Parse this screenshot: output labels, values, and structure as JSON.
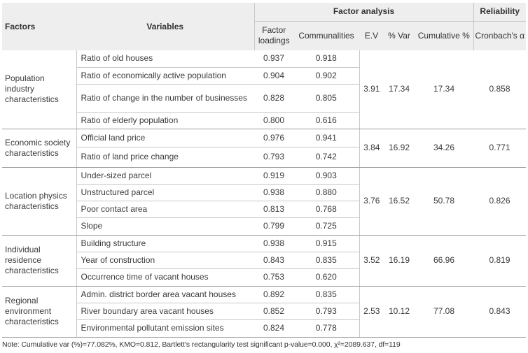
{
  "header": {
    "factor_analysis": "Factor analysis",
    "reliability": "Reliability",
    "factors": "Factors",
    "variables": "Variables",
    "factor_loadings": "Factor loadings",
    "communalities": "Communalities",
    "ev": "E.V",
    "pct_var": "% Var",
    "cumulative": "Cumulative %",
    "cronbach": "Cronbach's α"
  },
  "groups": [
    {
      "factor": "Population industry characteristics",
      "ev": "3.91",
      "pct_var": "17.34",
      "cumulative": "17.34",
      "alpha": "0.858",
      "rows": [
        {
          "variable": "Ratio of old houses",
          "loading": "0.937",
          "communality": "0.918"
        },
        {
          "variable": "Ratio of economically active population",
          "loading": "0.904",
          "communality": "0.902"
        },
        {
          "variable": "Ratio of change in the number of businesses",
          "loading": "0.828",
          "communality": "0.805"
        },
        {
          "variable": "Ratio of elderly population",
          "loading": "0.800",
          "communality": "0.616"
        }
      ]
    },
    {
      "factor": "Economic society characteristics",
      "ev": "3.84",
      "pct_var": "16.92",
      "cumulative": "34.26",
      "alpha": "0.771",
      "rows": [
        {
          "variable": "Official land price",
          "loading": "0.976",
          "communality": "0.941"
        },
        {
          "variable": "Ratio of land price change",
          "loading": "0.793",
          "communality": "0.742"
        }
      ]
    },
    {
      "factor": "Location physics characteristics",
      "ev": "3.76",
      "pct_var": "16.52",
      "cumulative": "50.78",
      "alpha": "0.826",
      "rows": [
        {
          "variable": "Under-sized parcel",
          "loading": "0.919",
          "communality": "0.903"
        },
        {
          "variable": "Unstructured parcel",
          "loading": "0.938",
          "communality": "0.880"
        },
        {
          "variable": "Poor contact area",
          "loading": "0.813",
          "communality": "0.768"
        },
        {
          "variable": "Slope",
          "loading": "0.799",
          "communality": "0.725"
        }
      ]
    },
    {
      "factor": "Individual residence characteristics",
      "ev": "3.52",
      "pct_var": "16.19",
      "cumulative": "66.96",
      "alpha": "0.819",
      "rows": [
        {
          "variable": "Building structure",
          "loading": "0.938",
          "communality": "0.915"
        },
        {
          "variable": "Year of construction",
          "loading": "0.843",
          "communality": "0.835"
        },
        {
          "variable": "Occurrence time of vacant houses",
          "loading": "0.753",
          "communality": "0.620"
        }
      ]
    },
    {
      "factor": "Regional environment characteristics",
      "ev": "2.53",
      "pct_var": "10.12",
      "cumulative": "77.08",
      "alpha": "0.843",
      "rows": [
        {
          "variable": "Admin. district border area vacant houses",
          "loading": "0.892",
          "communality": "0.835"
        },
        {
          "variable": "River boundary area vacant houses",
          "loading": "0.852",
          "communality": "0.793"
        },
        {
          "variable": "Environmental pollutant emission sites",
          "loading": "0.824",
          "communality": "0.778"
        }
      ]
    }
  ],
  "note": "Note: Cumulative var (%)=77.082%, KMO=0.812, Bartlett's rectangularity test significant p-value=0.000, χ²=2089.637, df=119"
}
